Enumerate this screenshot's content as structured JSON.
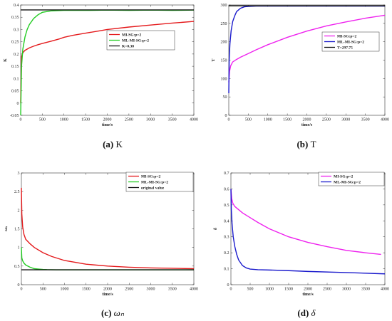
{
  "chart_data": [
    {
      "type": "line",
      "caption": {
        "label": "(a)",
        "text": "K"
      },
      "xlabel": "time/s",
      "ylabel": "K",
      "xlim": [
        0,
        4000
      ],
      "ylim": [
        -0.05,
        0.4
      ],
      "xticks": [
        0,
        500,
        1000,
        1500,
        2000,
        2500,
        3000,
        3500,
        4000
      ],
      "yticks": [
        -0.05,
        0,
        0.05,
        0.1,
        0.15,
        0.2,
        0.25,
        0.3,
        0.35,
        0.4
      ],
      "legend_position": "right",
      "series": [
        {
          "name": "MI-SG:p=2",
          "color": "#e41a1c",
          "x": [
            0,
            20,
            50,
            100,
            200,
            300,
            400,
            500,
            700,
            900,
            1000,
            1200,
            1500,
            1800,
            2000,
            2500,
            3000,
            3500,
            4000
          ],
          "y": [
            0.0,
            0.19,
            0.205,
            0.215,
            0.225,
            0.232,
            0.238,
            0.243,
            0.252,
            0.262,
            0.268,
            0.276,
            0.285,
            0.294,
            0.3,
            0.31,
            0.318,
            0.326,
            0.333
          ]
        },
        {
          "name": "ML-MI-SG:p=2",
          "color": "#22cc22",
          "x": [
            0,
            20,
            50,
            100,
            150,
            200,
            300,
            400,
            500,
            700,
            1000,
            1500,
            2000,
            2500,
            3000,
            3500,
            4000
          ],
          "y": [
            -0.05,
            0.15,
            0.22,
            0.27,
            0.3,
            0.32,
            0.345,
            0.36,
            0.37,
            0.376,
            0.378,
            0.378,
            0.379,
            0.378,
            0.379,
            0.378,
            0.379
          ]
        },
        {
          "name": "K=0.38",
          "color": "#111111",
          "x": [
            0,
            4000
          ],
          "y": [
            0.38,
            0.38
          ]
        }
      ]
    },
    {
      "type": "line",
      "caption": {
        "label": "(b)",
        "text": "T"
      },
      "xlabel": "time/s",
      "ylabel": "T",
      "xlim": [
        0,
        4000
      ],
      "ylim": [
        0,
        300
      ],
      "xticks": [
        0,
        500,
        1000,
        1500,
        2000,
        2500,
        3000,
        3500,
        4000
      ],
      "yticks": [
        0,
        50,
        100,
        150,
        200,
        250,
        300
      ],
      "legend_position": "right",
      "series": [
        {
          "name": "MI-SG:p=2",
          "color": "#ee22ee",
          "x": [
            0,
            20,
            50,
            100,
            200,
            300,
            500,
            700,
            1000,
            1500,
            2000,
            2500,
            3000,
            3500,
            4000
          ],
          "y": [
            90,
            120,
            135,
            145,
            152,
            158,
            168,
            178,
            192,
            212,
            229,
            243,
            254,
            264,
            272
          ]
        },
        {
          "name": "ML-MI-SG:p=2",
          "color": "#1a1acc",
          "x": [
            0,
            10,
            30,
            60,
            100,
            150,
            200,
            300,
            400,
            500,
            700,
            1000,
            2000,
            3000,
            4000
          ],
          "y": [
            60,
            150,
            195,
            230,
            255,
            270,
            282,
            291,
            295,
            296,
            297,
            297,
            297,
            297,
            297
          ]
        },
        {
          "name": "T=297.75",
          "color": "#111111",
          "x": [
            0,
            4000
          ],
          "y": [
            297.75,
            297.75
          ]
        }
      ]
    },
    {
      "type": "line",
      "caption": {
        "label": "(c)",
        "text": "ωₙ"
      },
      "xlabel": "time/s",
      "ylabel": "ωₙ",
      "xlim": [
        0,
        4000
      ],
      "ylim": [
        0,
        3
      ],
      "xticks": [
        0,
        500,
        1000,
        1500,
        2000,
        2500,
        3000,
        3500,
        4000
      ],
      "yticks": [
        0,
        0.5,
        1,
        1.5,
        2,
        2.5,
        3
      ],
      "legend_position": "top-right",
      "series": [
        {
          "name": "MI-SG:p=2",
          "color": "#e41a1c",
          "x": [
            0,
            10,
            30,
            60,
            100,
            200,
            300,
            500,
            700,
            1000,
            1500,
            2000,
            2500,
            3000,
            3500,
            4000
          ],
          "y": [
            2.6,
            1.9,
            1.55,
            1.35,
            1.22,
            1.1,
            1.0,
            0.86,
            0.76,
            0.65,
            0.55,
            0.5,
            0.47,
            0.45,
            0.44,
            0.43
          ]
        },
        {
          "name": "ML-MI-SG:p=2",
          "color": "#22cc22",
          "x": [
            0,
            10,
            30,
            60,
            100,
            150,
            200,
            300,
            400,
            500,
            600,
            800,
            1000,
            2000,
            4000
          ],
          "y": [
            1.0,
            0.72,
            0.64,
            0.58,
            0.53,
            0.5,
            0.47,
            0.43,
            0.42,
            0.41,
            0.405,
            0.4,
            0.4,
            0.4,
            0.4
          ]
        },
        {
          "name": "original value",
          "color": "#111111",
          "x": [
            0,
            4000
          ],
          "y": [
            0.4,
            0.4
          ]
        }
      ]
    },
    {
      "type": "line",
      "caption": {
        "label": "(d)",
        "text": "δ"
      },
      "xlabel": "time/s",
      "ylabel": "δ",
      "xlim": [
        0,
        4000
      ],
      "ylim": [
        0,
        0.7
      ],
      "xticks": [
        0,
        500,
        1000,
        1500,
        2000,
        2500,
        3000,
        3500,
        4000
      ],
      "yticks": [
        0,
        0.1,
        0.2,
        0.3,
        0.4,
        0.5,
        0.6,
        0.7
      ],
      "legend_position": "top-right",
      "series": [
        {
          "name": "MI-SG:p=2",
          "color": "#ee22ee",
          "x": [
            0,
            20,
            50,
            100,
            200,
            300,
            500,
            700,
            1000,
            1500,
            2000,
            2500,
            3000,
            3500,
            3900
          ],
          "y": [
            0.6,
            0.54,
            0.51,
            0.49,
            0.47,
            0.45,
            0.42,
            0.39,
            0.35,
            0.3,
            0.265,
            0.238,
            0.215,
            0.2,
            0.19
          ]
        },
        {
          "name": "ML-MI-SG:p=2",
          "color": "#1a1acc",
          "x": [
            0,
            10,
            30,
            60,
            100,
            150,
            200,
            300,
            400,
            500,
            700,
            1000,
            1500,
            2000,
            3000,
            4000
          ],
          "y": [
            0.6,
            0.47,
            0.38,
            0.3,
            0.24,
            0.19,
            0.155,
            0.12,
            0.105,
            0.098,
            0.094,
            0.092,
            0.088,
            0.083,
            0.076,
            0.068
          ]
        }
      ]
    }
  ]
}
